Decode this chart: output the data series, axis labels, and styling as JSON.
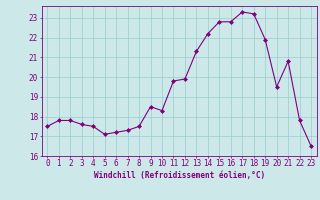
{
  "x": [
    0,
    1,
    2,
    3,
    4,
    5,
    6,
    7,
    8,
    9,
    10,
    11,
    12,
    13,
    14,
    15,
    16,
    17,
    18,
    19,
    20,
    21,
    22,
    23
  ],
  "y": [
    17.5,
    17.8,
    17.8,
    17.6,
    17.5,
    17.1,
    17.2,
    17.3,
    17.5,
    18.5,
    18.3,
    19.8,
    19.9,
    21.3,
    22.2,
    22.8,
    22.8,
    23.3,
    23.2,
    21.9,
    19.5,
    20.8,
    17.8,
    16.5
  ],
  "line_color": "#800080",
  "marker": "D",
  "marker_size": 2.0,
  "bg_color": "#cce8e8",
  "grid_color": "#99cccc",
  "ylim": [
    16,
    23.6
  ],
  "xlim": [
    -0.5,
    23.5
  ],
  "yticks": [
    16,
    17,
    18,
    19,
    20,
    21,
    22,
    23
  ],
  "xticks": [
    0,
    1,
    2,
    3,
    4,
    5,
    6,
    7,
    8,
    9,
    10,
    11,
    12,
    13,
    14,
    15,
    16,
    17,
    18,
    19,
    20,
    21,
    22,
    23
  ],
  "xlabel": "Windchill (Refroidissement éolien,°C)",
  "tick_color": "#800080",
  "label_fontsize": 5.5,
  "tick_fontsize": 5.5
}
